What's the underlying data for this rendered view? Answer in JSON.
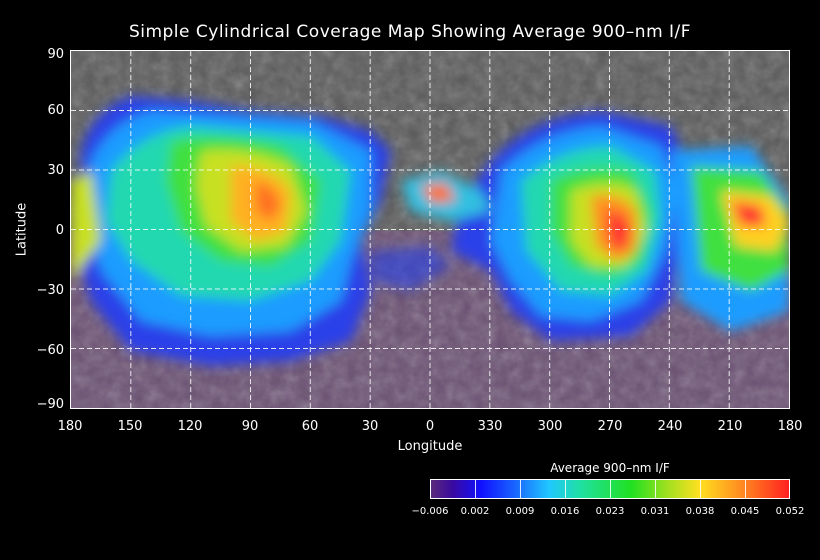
{
  "title": "Simple Cylindrical Coverage Map Showing Average 900–nm I/F",
  "axes": {
    "xlabel": "Longitude",
    "ylabel": "Latitude",
    "x_ticks": [
      "180",
      "150",
      "120",
      "90",
      "60",
      "30",
      "0",
      "330",
      "300",
      "270",
      "240",
      "210",
      "180"
    ],
    "y_ticks": [
      "90",
      "60",
      "30",
      "0",
      "−30",
      "−60",
      "−90"
    ]
  },
  "colorbar": {
    "title": "Average 900–nm I/F",
    "tick_labels": [
      "−0.006",
      "0.002",
      "0.009",
      "0.016",
      "0.023",
      "0.031",
      "0.038",
      "0.045",
      "0.052"
    ]
  },
  "colors": {
    "background": "#000000",
    "grid": "#ffffff",
    "low": "#5a2a7a",
    "high": "#ff2020"
  },
  "chart_data": {
    "type": "heatmap",
    "projection": "simple cylindrical",
    "x_range_deg": [
      180,
      -180
    ],
    "y_range_deg": [
      -90,
      90
    ],
    "grid": true,
    "value_range": [
      -0.006,
      0.052
    ]
  }
}
